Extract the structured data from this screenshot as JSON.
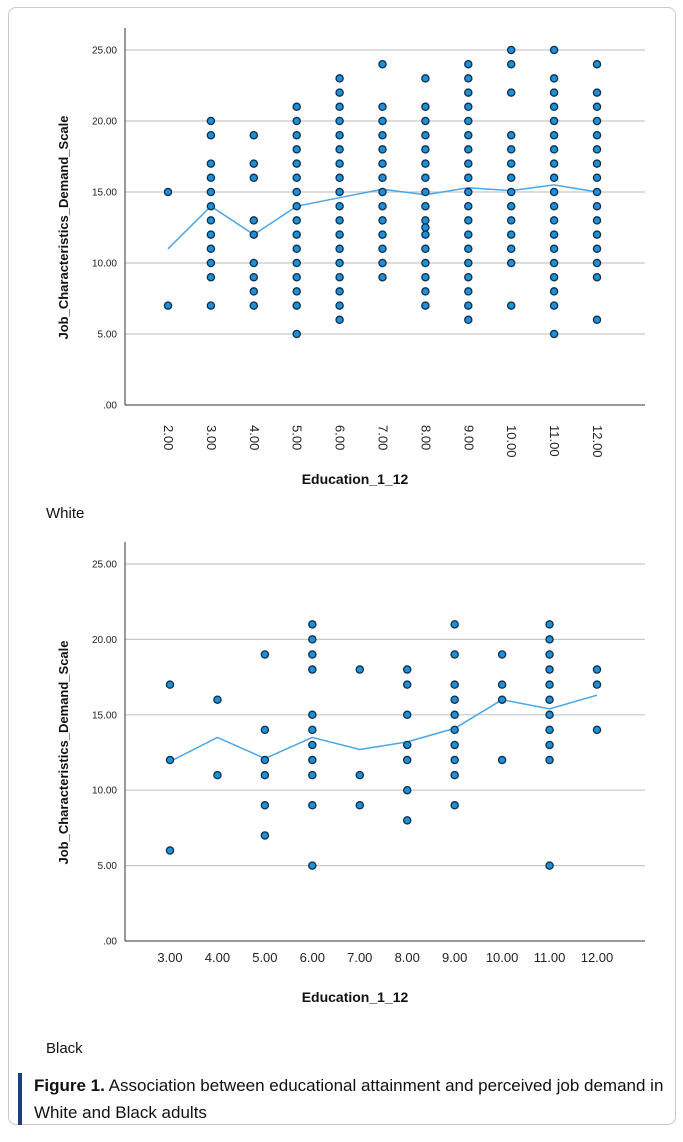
{
  "chart_data": [
    {
      "type": "scatter",
      "panel_label": "White",
      "xlabel": "Education_1_12",
      "ylabel": "Job_Characteristics_Demand_Scale",
      "ylim": [
        0,
        25
      ],
      "yticks": [
        ".00",
        "5.00",
        "10.00",
        "15.00",
        "20.00",
        "25.00"
      ],
      "categories": [
        "2.00",
        "3.00",
        "4.00",
        "5.00",
        "6.00",
        "7.00",
        "8.00",
        "9.00",
        "10.00",
        "11.00",
        "12.00"
      ],
      "x_tick_rotation": "vertical",
      "grid": true,
      "points": [
        [
          2,
          15
        ],
        [
          2,
          7
        ],
        [
          3,
          20
        ],
        [
          3,
          19
        ],
        [
          3,
          17
        ],
        [
          3,
          16
        ],
        [
          3,
          15
        ],
        [
          3,
          14
        ],
        [
          3,
          13
        ],
        [
          3,
          12
        ],
        [
          3,
          11
        ],
        [
          3,
          10
        ],
        [
          3,
          9
        ],
        [
          3,
          7
        ],
        [
          4,
          19
        ],
        [
          4,
          17
        ],
        [
          4,
          16
        ],
        [
          4,
          13
        ],
        [
          4,
          12
        ],
        [
          4,
          10
        ],
        [
          4,
          9
        ],
        [
          4,
          8
        ],
        [
          4,
          7
        ],
        [
          5,
          21
        ],
        [
          5,
          20
        ],
        [
          5,
          19
        ],
        [
          5,
          18
        ],
        [
          5,
          17
        ],
        [
          5,
          16
        ],
        [
          5,
          15
        ],
        [
          5,
          14
        ],
        [
          5,
          13
        ],
        [
          5,
          12
        ],
        [
          5,
          11
        ],
        [
          5,
          10
        ],
        [
          5,
          9
        ],
        [
          5,
          8
        ],
        [
          5,
          7
        ],
        [
          5,
          5
        ],
        [
          6,
          23
        ],
        [
          6,
          22
        ],
        [
          6,
          21
        ],
        [
          6,
          20
        ],
        [
          6,
          19
        ],
        [
          6,
          18
        ],
        [
          6,
          17
        ],
        [
          6,
          16
        ],
        [
          6,
          15
        ],
        [
          6,
          14
        ],
        [
          6,
          13
        ],
        [
          6,
          12
        ],
        [
          6,
          11
        ],
        [
          6,
          10
        ],
        [
          6,
          9
        ],
        [
          6,
          8
        ],
        [
          6,
          7
        ],
        [
          6,
          6
        ],
        [
          7,
          24
        ],
        [
          7,
          21
        ],
        [
          7,
          20
        ],
        [
          7,
          19
        ],
        [
          7,
          18
        ],
        [
          7,
          17
        ],
        [
          7,
          16
        ],
        [
          7,
          15
        ],
        [
          7,
          14
        ],
        [
          7,
          13
        ],
        [
          7,
          12
        ],
        [
          7,
          11
        ],
        [
          7,
          10
        ],
        [
          7,
          9
        ],
        [
          8,
          23
        ],
        [
          8,
          21
        ],
        [
          8,
          20
        ],
        [
          8,
          19
        ],
        [
          8,
          18
        ],
        [
          8,
          17
        ],
        [
          8,
          16
        ],
        [
          8,
          15
        ],
        [
          8,
          14
        ],
        [
          8,
          13
        ],
        [
          8,
          12.5
        ],
        [
          8,
          12
        ],
        [
          8,
          11
        ],
        [
          8,
          10
        ],
        [
          8,
          9
        ],
        [
          8,
          8
        ],
        [
          8,
          7
        ],
        [
          9,
          24
        ],
        [
          9,
          23
        ],
        [
          9,
          22
        ],
        [
          9,
          21
        ],
        [
          9,
          20
        ],
        [
          9,
          19
        ],
        [
          9,
          18
        ],
        [
          9,
          17
        ],
        [
          9,
          16
        ],
        [
          9,
          15
        ],
        [
          9,
          14
        ],
        [
          9,
          13
        ],
        [
          9,
          12
        ],
        [
          9,
          11
        ],
        [
          9,
          10
        ],
        [
          9,
          9
        ],
        [
          9,
          8
        ],
        [
          9,
          7
        ],
        [
          9,
          6
        ],
        [
          10,
          25
        ],
        [
          10,
          24
        ],
        [
          10,
          22
        ],
        [
          10,
          19
        ],
        [
          10,
          18
        ],
        [
          10,
          17
        ],
        [
          10,
          16
        ],
        [
          10,
          15
        ],
        [
          10,
          14
        ],
        [
          10,
          13
        ],
        [
          10,
          12
        ],
        [
          10,
          11
        ],
        [
          10,
          10
        ],
        [
          10,
          7
        ],
        [
          11,
          25
        ],
        [
          11,
          23
        ],
        [
          11,
          22
        ],
        [
          11,
          21
        ],
        [
          11,
          20
        ],
        [
          11,
          19
        ],
        [
          11,
          18
        ],
        [
          11,
          17
        ],
        [
          11,
          16
        ],
        [
          11,
          15
        ],
        [
          11,
          14
        ],
        [
          11,
          13
        ],
        [
          11,
          12
        ],
        [
          11,
          11
        ],
        [
          11,
          10
        ],
        [
          11,
          9
        ],
        [
          11,
          8
        ],
        [
          11,
          7
        ],
        [
          11,
          5
        ],
        [
          12,
          24
        ],
        [
          12,
          22
        ],
        [
          12,
          21
        ],
        [
          12,
          20
        ],
        [
          12,
          19
        ],
        [
          12,
          18
        ],
        [
          12,
          17
        ],
        [
          12,
          16
        ],
        [
          12,
          15
        ],
        [
          12,
          14
        ],
        [
          12,
          13
        ],
        [
          12,
          12
        ],
        [
          12,
          11
        ],
        [
          12,
          10
        ],
        [
          12,
          9
        ],
        [
          12,
          6
        ]
      ],
      "mean_line": [
        [
          2,
          11
        ],
        [
          3,
          14
        ],
        [
          4,
          12
        ],
        [
          5,
          14
        ],
        [
          6,
          14.6
        ],
        [
          7,
          15.2
        ],
        [
          8,
          14.8
        ],
        [
          9,
          15.3
        ],
        [
          10,
          15.1
        ],
        [
          11,
          15.5
        ],
        [
          12,
          15
        ]
      ]
    },
    {
      "type": "scatter",
      "panel_label": "Black",
      "xlabel": "Education_1_12",
      "ylabel": "Job_Characteristics_Demand_Scale",
      "ylim": [
        0,
        25
      ],
      "yticks": [
        ".00",
        "5.00",
        "10.00",
        "15.00",
        "20.00",
        "25.00"
      ],
      "categories": [
        "3.00",
        "4.00",
        "5.00",
        "6.00",
        "7.00",
        "8.00",
        "9.00",
        "10.00",
        "11.00",
        "12.00"
      ],
      "x_tick_rotation": "horizontal",
      "grid": true,
      "points": [
        [
          3,
          17
        ],
        [
          3,
          12
        ],
        [
          3,
          6
        ],
        [
          4,
          16
        ],
        [
          4,
          11
        ],
        [
          5,
          19
        ],
        [
          5,
          14
        ],
        [
          5,
          12
        ],
        [
          5,
          11
        ],
        [
          5,
          9
        ],
        [
          5,
          7
        ],
        [
          6,
          21
        ],
        [
          6,
          20
        ],
        [
          6,
          19
        ],
        [
          6,
          18
        ],
        [
          6,
          15
        ],
        [
          6,
          14
        ],
        [
          6,
          13
        ],
        [
          6,
          12
        ],
        [
          6,
          11
        ],
        [
          6,
          9
        ],
        [
          6,
          5
        ],
        [
          7,
          18
        ],
        [
          7,
          11
        ],
        [
          7,
          9
        ],
        [
          8,
          18
        ],
        [
          8,
          17
        ],
        [
          8,
          15
        ],
        [
          8,
          13
        ],
        [
          8,
          12
        ],
        [
          8,
          10
        ],
        [
          8,
          8
        ],
        [
          9,
          21
        ],
        [
          9,
          19
        ],
        [
          9,
          17
        ],
        [
          9,
          16
        ],
        [
          9,
          15
        ],
        [
          9,
          14
        ],
        [
          9,
          13
        ],
        [
          9,
          12
        ],
        [
          9,
          11
        ],
        [
          9,
          9
        ],
        [
          10,
          19
        ],
        [
          10,
          17
        ],
        [
          10,
          16
        ],
        [
          10,
          12
        ],
        [
          11,
          21
        ],
        [
          11,
          20
        ],
        [
          11,
          19
        ],
        [
          11,
          18
        ],
        [
          11,
          17
        ],
        [
          11,
          16
        ],
        [
          11,
          15
        ],
        [
          11,
          14
        ],
        [
          11,
          13
        ],
        [
          11,
          12
        ],
        [
          11,
          5
        ],
        [
          12,
          18
        ],
        [
          12,
          17
        ],
        [
          12,
          14
        ]
      ],
      "mean_line": [
        [
          3,
          11.9
        ],
        [
          4,
          13.5
        ],
        [
          5,
          12.1
        ],
        [
          6,
          13.5
        ],
        [
          7,
          12.7
        ],
        [
          8,
          13.2
        ],
        [
          9,
          14.1
        ],
        [
          10,
          16
        ],
        [
          11,
          15.4
        ],
        [
          12,
          16.3
        ]
      ]
    }
  ],
  "caption": {
    "label": "Figure 1.",
    "text": " Association between educational attainment and perceived job demand in White and Black adults"
  },
  "colors": {
    "point_fill": "#1f8fd6",
    "point_stroke": "#0d2f4d",
    "mean_line": "#4aa6e8",
    "grid": "#c8c8c8",
    "caption_bar": "#1a3f7a"
  }
}
